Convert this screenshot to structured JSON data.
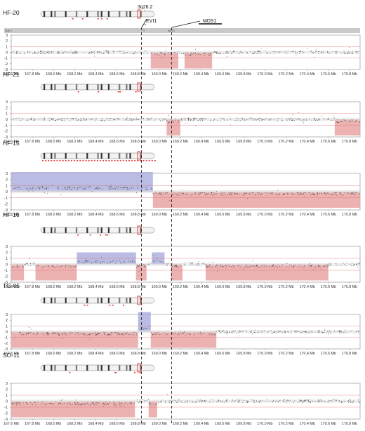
{
  "annotations": {
    "band": "3q26.2",
    "gene1": "EVI1",
    "gene2": "MDS1"
  },
  "header_strip": {
    "left": "Size 1",
    "mid1": "77",
    "mid2": "MDS1"
  },
  "colors": {
    "loss": "#e9a3a3",
    "gain": "#aeb0de",
    "baseline": "#d9d9d9",
    "points": "#333333",
    "plot_border": "#888888",
    "chromosome": "#f2f2f2"
  },
  "chart_data": [
    {
      "type": "scatter",
      "sample": "HF-20",
      "xlim": [
        167.6,
        170.9
      ],
      "ylim": [
        -3,
        3
      ],
      "y_ticks": [
        "3",
        "2",
        "1",
        "0",
        "-1",
        "-2",
        "-3"
      ],
      "x_ticks": [
        "167.6 Mb",
        "167.8 Mb",
        "168.0 Mb",
        "168.2 Mb",
        "168.4 Mb",
        "168.6 Mb",
        "168.8 Mb",
        "169.0 Mb",
        "169.2 Mb",
        "169.4 Mb",
        "169.6 Mb",
        "169.8 Mb",
        "170.0 Mb",
        "170.2 Mb",
        "170.4 Mb",
        "170.6 Mb",
        "170.8 Mb"
      ],
      "segments": [
        {
          "kind": "loss",
          "x0": 168.92,
          "x1": 169.18,
          "value": -0.25
        },
        {
          "kind": "loss",
          "x0": 169.24,
          "x1": 169.5,
          "value": -0.3
        }
      ]
    },
    {
      "type": "scatter",
      "sample": "HF-21",
      "xlim": [
        167.6,
        170.9
      ],
      "ylim": [
        -3,
        3
      ],
      "y_ticks": [
        "3",
        "2",
        "1",
        "0",
        "-1",
        "-2",
        "-3"
      ],
      "x_ticks": [
        "167.6 Mb",
        "167.8 Mb",
        "168.0 Mb",
        "168.2 Mb",
        "168.4 Mb",
        "168.6 Mb",
        "168.8 Mb",
        "169.0 Mb",
        "169.2 Mb",
        "169.4 Mb",
        "169.6 Mb",
        "169.8 Mb",
        "170.0 Mb",
        "170.2 Mb",
        "170.4 Mb",
        "170.6 Mb",
        "170.8 Mb"
      ],
      "segments": [
        {
          "kind": "loss",
          "x0": 169.07,
          "x1": 169.2,
          "value": -0.3
        },
        {
          "kind": "loss",
          "x0": 170.66,
          "x1": 170.9,
          "value": -0.3
        }
      ]
    },
    {
      "type": "scatter",
      "sample": "HF-15",
      "xlim": [
        167.6,
        170.9
      ],
      "ylim": [
        -3,
        3
      ],
      "y_ticks": [
        "3",
        "2",
        "1",
        "0",
        "-1",
        "-2",
        "-3"
      ],
      "x_ticks": [
        "167.6 Mb",
        "167.8 Mb",
        "168.0 Mb",
        "168.2 Mb",
        "168.4 Mb",
        "168.6 Mb",
        "168.8 Mb",
        "169.0 Mb",
        "169.2 Mb",
        "169.4 Mb",
        "169.6 Mb",
        "169.8 Mb",
        "170.0 Mb",
        "170.2 Mb",
        "170.4 Mb",
        "170.6 Mb",
        "170.8 Mb"
      ],
      "segments": [
        {
          "kind": "gain",
          "x0": 167.6,
          "x1": 168.94,
          "value": 0.6
        },
        {
          "kind": "loss",
          "x0": 168.94,
          "x1": 170.9,
          "value": -0.35
        }
      ]
    },
    {
      "type": "scatter",
      "sample": "HF-16",
      "xlim": [
        167.6,
        170.9
      ],
      "ylim": [
        -3,
        3
      ],
      "y_ticks": [
        "3",
        "2",
        "1",
        "0",
        "-1",
        "-2",
        "-3"
      ],
      "x_ticks": [
        "167.6 Mb",
        "167.8 Mb",
        "168.0 Mb",
        "168.2 Mb",
        "168.4 Mb",
        "168.6 Mb",
        "168.8 Mb",
        "169.0 Mb",
        "169.2 Mb",
        "169.4 Mb",
        "169.6 Mb",
        "169.8 Mb",
        "170.0 Mb",
        "170.2 Mb",
        "170.4 Mb",
        "170.6 Mb",
        "170.8 Mb"
      ],
      "segments": [
        {
          "kind": "loss",
          "x0": 167.6,
          "x1": 167.72,
          "value": -0.3
        },
        {
          "kind": "loss",
          "x0": 167.83,
          "x1": 168.22,
          "value": -0.3
        },
        {
          "kind": "gain",
          "x0": 168.22,
          "x1": 168.78,
          "value": 0.4
        },
        {
          "kind": "loss",
          "x0": 168.78,
          "x1": 168.88,
          "value": -0.3
        },
        {
          "kind": "gain",
          "x0": 168.93,
          "x1": 169.05,
          "value": 0.4
        },
        {
          "kind": "loss",
          "x0": 169.11,
          "x1": 169.22,
          "value": -0.3
        },
        {
          "kind": "loss",
          "x0": 169.44,
          "x1": 170.6,
          "value": -0.3
        }
      ]
    },
    {
      "type": "scatter",
      "sample": "TG-05",
      "xlim": [
        167.6,
        170.9
      ],
      "ylim": [
        -3,
        3
      ],
      "y_ticks": [
        "3",
        "2",
        "1",
        "0",
        "-1",
        "-2",
        "-3"
      ],
      "x_ticks": [
        "167.6 Mb",
        "167.8 Mb",
        "168.0 Mb",
        "168.2 Mb",
        "168.4 Mb",
        "168.6 Mb",
        "168.8 Mb",
        "169.0 Mb",
        "169.2 Mb",
        "169.4 Mb",
        "169.6 Mb",
        "169.8 Mb",
        "170.0 Mb",
        "170.2 Mb",
        "170.4 Mb",
        "170.6 Mb",
        "170.8 Mb"
      ],
      "segments": [
        {
          "kind": "loss",
          "x0": 167.6,
          "x1": 168.8,
          "value": -0.35
        },
        {
          "kind": "gain",
          "x0": 168.8,
          "x1": 168.92,
          "value": 0.6
        },
        {
          "kind": "loss",
          "x0": 168.92,
          "x1": 169.54,
          "value": -0.35
        }
      ]
    },
    {
      "type": "scatter",
      "sample": "SO-11",
      "xlim": [
        167.6,
        170.9
      ],
      "ylim": [
        -3,
        3
      ],
      "y_ticks": [
        "3",
        "2",
        "1",
        "0",
        "-1",
        "-2",
        "-3"
      ],
      "x_ticks": [
        "167.6 Mb",
        "167.8 Mb",
        "168.0 Mb",
        "168.2 Mb",
        "168.4 Mb",
        "168.6 Mb",
        "168.8 Mb",
        "169.0 Mb",
        "169.2 Mb",
        "169.4 Mb",
        "169.6 Mb",
        "169.8 Mb",
        "170.0 Mb",
        "170.2 Mb",
        "170.4 Mb",
        "170.6 Mb",
        "170.8 Mb"
      ],
      "segments": [
        {
          "kind": "loss",
          "x0": 167.6,
          "x1": 168.77,
          "value": -0.4
        },
        {
          "kind": "loss",
          "x0": 168.9,
          "x1": 168.98,
          "value": -0.4
        }
      ]
    }
  ]
}
